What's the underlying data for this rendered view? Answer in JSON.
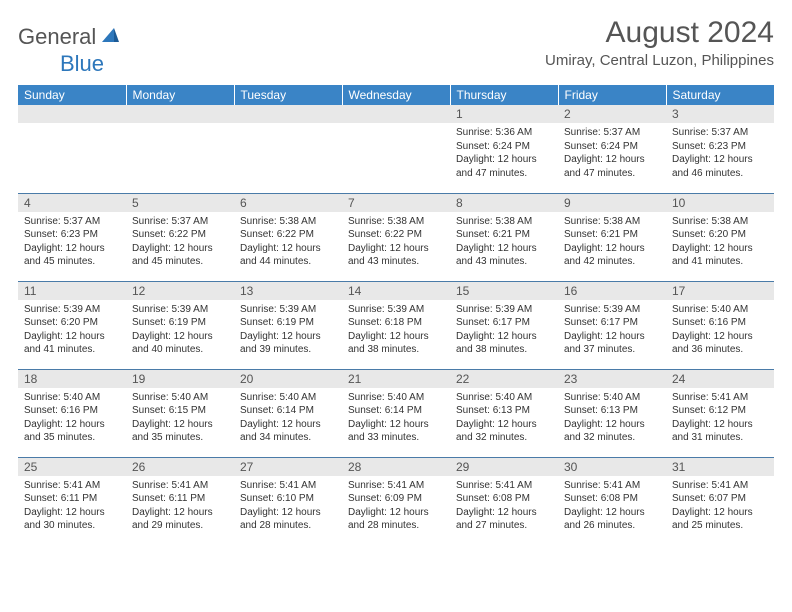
{
  "logo": {
    "text1": "General",
    "text2": "Blue",
    "color1": "#555555",
    "color2": "#2d77bb"
  },
  "title": "August 2024",
  "location": "Umiray, Central Luzon, Philippines",
  "theme": {
    "header_bg": "#3a84c6",
    "header_fg": "#ffffff",
    "row_border": "#4a7ba8",
    "daynum_bg": "#e8e8e8",
    "text_color": "#333333"
  },
  "weekdays": [
    "Sunday",
    "Monday",
    "Tuesday",
    "Wednesday",
    "Thursday",
    "Friday",
    "Saturday"
  ],
  "weeks": [
    [
      null,
      null,
      null,
      null,
      {
        "n": "1",
        "sr": "5:36 AM",
        "ss": "6:24 PM",
        "dl": "12 hours and 47 minutes."
      },
      {
        "n": "2",
        "sr": "5:37 AM",
        "ss": "6:24 PM",
        "dl": "12 hours and 47 minutes."
      },
      {
        "n": "3",
        "sr": "5:37 AM",
        "ss": "6:23 PM",
        "dl": "12 hours and 46 minutes."
      }
    ],
    [
      {
        "n": "4",
        "sr": "5:37 AM",
        "ss": "6:23 PM",
        "dl": "12 hours and 45 minutes."
      },
      {
        "n": "5",
        "sr": "5:37 AM",
        "ss": "6:22 PM",
        "dl": "12 hours and 45 minutes."
      },
      {
        "n": "6",
        "sr": "5:38 AM",
        "ss": "6:22 PM",
        "dl": "12 hours and 44 minutes."
      },
      {
        "n": "7",
        "sr": "5:38 AM",
        "ss": "6:22 PM",
        "dl": "12 hours and 43 minutes."
      },
      {
        "n": "8",
        "sr": "5:38 AM",
        "ss": "6:21 PM",
        "dl": "12 hours and 43 minutes."
      },
      {
        "n": "9",
        "sr": "5:38 AM",
        "ss": "6:21 PM",
        "dl": "12 hours and 42 minutes."
      },
      {
        "n": "10",
        "sr": "5:38 AM",
        "ss": "6:20 PM",
        "dl": "12 hours and 41 minutes."
      }
    ],
    [
      {
        "n": "11",
        "sr": "5:39 AM",
        "ss": "6:20 PM",
        "dl": "12 hours and 41 minutes."
      },
      {
        "n": "12",
        "sr": "5:39 AM",
        "ss": "6:19 PM",
        "dl": "12 hours and 40 minutes."
      },
      {
        "n": "13",
        "sr": "5:39 AM",
        "ss": "6:19 PM",
        "dl": "12 hours and 39 minutes."
      },
      {
        "n": "14",
        "sr": "5:39 AM",
        "ss": "6:18 PM",
        "dl": "12 hours and 38 minutes."
      },
      {
        "n": "15",
        "sr": "5:39 AM",
        "ss": "6:17 PM",
        "dl": "12 hours and 38 minutes."
      },
      {
        "n": "16",
        "sr": "5:39 AM",
        "ss": "6:17 PM",
        "dl": "12 hours and 37 minutes."
      },
      {
        "n": "17",
        "sr": "5:40 AM",
        "ss": "6:16 PM",
        "dl": "12 hours and 36 minutes."
      }
    ],
    [
      {
        "n": "18",
        "sr": "5:40 AM",
        "ss": "6:16 PM",
        "dl": "12 hours and 35 minutes."
      },
      {
        "n": "19",
        "sr": "5:40 AM",
        "ss": "6:15 PM",
        "dl": "12 hours and 35 minutes."
      },
      {
        "n": "20",
        "sr": "5:40 AM",
        "ss": "6:14 PM",
        "dl": "12 hours and 34 minutes."
      },
      {
        "n": "21",
        "sr": "5:40 AM",
        "ss": "6:14 PM",
        "dl": "12 hours and 33 minutes."
      },
      {
        "n": "22",
        "sr": "5:40 AM",
        "ss": "6:13 PM",
        "dl": "12 hours and 32 minutes."
      },
      {
        "n": "23",
        "sr": "5:40 AM",
        "ss": "6:13 PM",
        "dl": "12 hours and 32 minutes."
      },
      {
        "n": "24",
        "sr": "5:41 AM",
        "ss": "6:12 PM",
        "dl": "12 hours and 31 minutes."
      }
    ],
    [
      {
        "n": "25",
        "sr": "5:41 AM",
        "ss": "6:11 PM",
        "dl": "12 hours and 30 minutes."
      },
      {
        "n": "26",
        "sr": "5:41 AM",
        "ss": "6:11 PM",
        "dl": "12 hours and 29 minutes."
      },
      {
        "n": "27",
        "sr": "5:41 AM",
        "ss": "6:10 PM",
        "dl": "12 hours and 28 minutes."
      },
      {
        "n": "28",
        "sr": "5:41 AM",
        "ss": "6:09 PM",
        "dl": "12 hours and 28 minutes."
      },
      {
        "n": "29",
        "sr": "5:41 AM",
        "ss": "6:08 PM",
        "dl": "12 hours and 27 minutes."
      },
      {
        "n": "30",
        "sr": "5:41 AM",
        "ss": "6:08 PM",
        "dl": "12 hours and 26 minutes."
      },
      {
        "n": "31",
        "sr": "5:41 AM",
        "ss": "6:07 PM",
        "dl": "12 hours and 25 minutes."
      }
    ]
  ],
  "labels": {
    "sunrise": "Sunrise:",
    "sunset": "Sunset:",
    "daylight": "Daylight:"
  }
}
